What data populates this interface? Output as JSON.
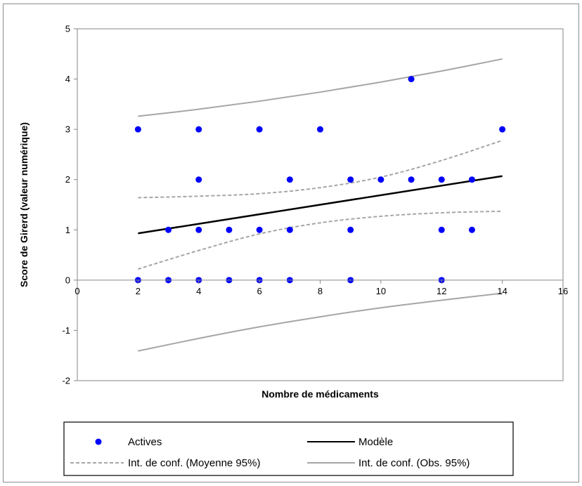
{
  "chart_data": {
    "type": "scatter",
    "title": "",
    "xlabel": "Nombre de médicaments",
    "ylabel": "Score de Girerd (valeur numérique)",
    "xlim": [
      0,
      16
    ],
    "ylim": [
      -2,
      5
    ],
    "x_ticks": [
      0,
      2,
      4,
      6,
      8,
      10,
      12,
      14,
      16
    ],
    "y_ticks": [
      -2,
      -1,
      0,
      1,
      2,
      3,
      4,
      5
    ],
    "grid": false,
    "legend_placement": "bottom",
    "colors": {
      "actives": "#0000ff",
      "modele": "#000000",
      "ci_mean": "#a6a6a6",
      "ci_obs": "#a6a6a6"
    },
    "series": [
      {
        "name": "Actives",
        "kind": "scatter",
        "points": [
          [
            2,
            3
          ],
          [
            2,
            0
          ],
          [
            3,
            1
          ],
          [
            3,
            0
          ],
          [
            4,
            3
          ],
          [
            4,
            2
          ],
          [
            4,
            1
          ],
          [
            4,
            0
          ],
          [
            5,
            1
          ],
          [
            5,
            0
          ],
          [
            6,
            3
          ],
          [
            6,
            1
          ],
          [
            6,
            0
          ],
          [
            7,
            2
          ],
          [
            7,
            1
          ],
          [
            7,
            0
          ],
          [
            8,
            3
          ],
          [
            9,
            2
          ],
          [
            9,
            1
          ],
          [
            9,
            0
          ],
          [
            10,
            2
          ],
          [
            11,
            4
          ],
          [
            11,
            2
          ],
          [
            12,
            2
          ],
          [
            12,
            1
          ],
          [
            12,
            0
          ],
          [
            13,
            2
          ],
          [
            13,
            1
          ],
          [
            14,
            3
          ]
        ]
      },
      {
        "name": "Modèle",
        "kind": "line",
        "points": [
          [
            2,
            0.93
          ],
          [
            14,
            2.07
          ]
        ]
      },
      {
        "name": "Int. de conf. (Moyenne 95%)",
        "kind": "dashed-line",
        "upper": [
          [
            2,
            1.64
          ],
          [
            4,
            1.67
          ],
          [
            6,
            1.72
          ],
          [
            8,
            1.84
          ],
          [
            10,
            2.05
          ],
          [
            12,
            2.38
          ],
          [
            14,
            2.78
          ]
        ],
        "lower": [
          [
            2,
            0.22
          ],
          [
            4,
            0.59
          ],
          [
            6,
            0.92
          ],
          [
            8,
            1.14
          ],
          [
            10,
            1.27
          ],
          [
            12,
            1.34
          ],
          [
            14,
            1.37
          ]
        ]
      },
      {
        "name": "Int. de conf. (Obs. 95%)",
        "kind": "line",
        "upper": [
          [
            2,
            3.26
          ],
          [
            4,
            3.4
          ],
          [
            6,
            3.56
          ],
          [
            8,
            3.74
          ],
          [
            10,
            3.94
          ],
          [
            12,
            4.16
          ],
          [
            14,
            4.4
          ]
        ],
        "lower": [
          [
            2,
            -1.41
          ],
          [
            4,
            -1.16
          ],
          [
            6,
            -0.93
          ],
          [
            8,
            -0.73
          ],
          [
            10,
            -0.55
          ],
          [
            12,
            -0.4
          ],
          [
            14,
            -0.26
          ]
        ]
      }
    ]
  }
}
